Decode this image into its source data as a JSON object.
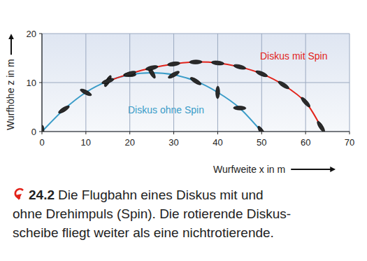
{
  "chart_data": {
    "type": "line",
    "x_label": "Wurfweite x in m",
    "y_label": "Wurfhöhe z in m",
    "xlim": [
      0,
      70
    ],
    "ylim": [
      0,
      20
    ],
    "xticks": [
      0,
      10,
      20,
      30,
      40,
      50,
      60,
      70
    ],
    "yticks": [
      0,
      10,
      20
    ],
    "grid": true,
    "series": [
      {
        "name": "Diskus ohne Spin",
        "color": "#3a9cc8",
        "marker": "discus",
        "x": [
          0,
          5,
          10,
          15,
          20,
          25,
          30,
          35,
          40,
          45,
          50
        ],
        "values": [
          0,
          4.5,
          8,
          10.3,
          11.6,
          12,
          11.6,
          10.3,
          8,
          4.8,
          0
        ]
      },
      {
        "name": "Diskus mit Spin",
        "color": "#e2231a",
        "marker": "discus",
        "x": [
          15,
          20,
          25,
          30,
          35,
          40,
          45,
          50,
          55,
          60,
          63.5
        ],
        "values": [
          10.3,
          11.8,
          13,
          13.8,
          14.2,
          14,
          13.2,
          11.8,
          9.5,
          6,
          1
        ]
      }
    ],
    "caption": {
      "number": "24.2",
      "lines": [
        "Die Flugbahn eines Diskus mit und",
        "ohne Drehimpuls (Spin). Die rotierende Diskus-",
        "scheibe fliegt weiter als eine nichtrotierende."
      ]
    }
  }
}
